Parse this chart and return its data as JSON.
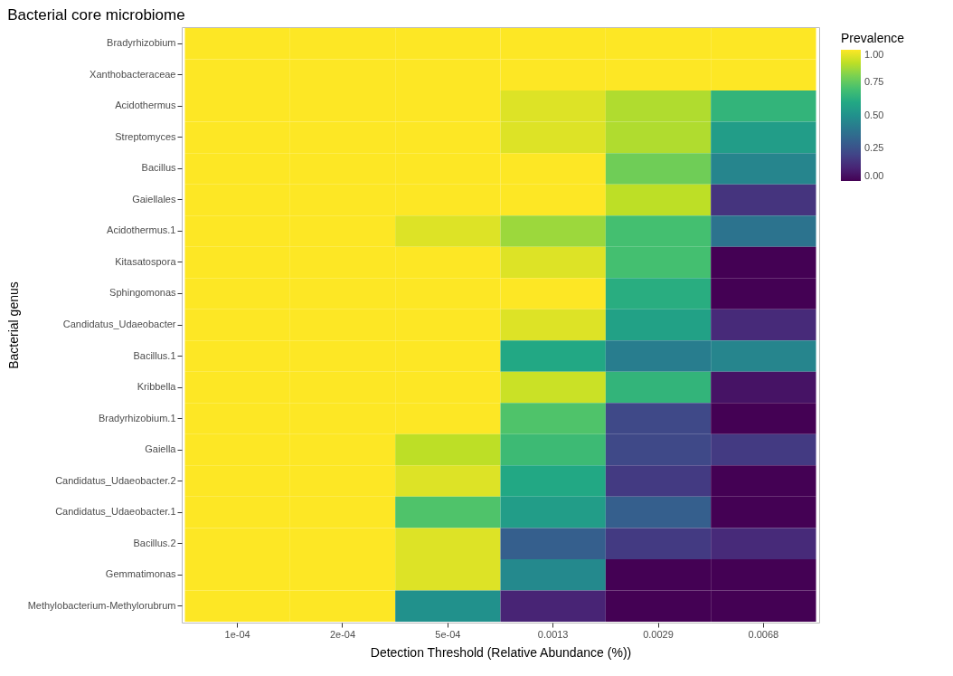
{
  "chart_data": {
    "type": "heatmap",
    "title": "Bacterial core microbiome",
    "xlabel": "Detection Threshold (Relative Abundance (%))",
    "ylabel": "Bacterial genus",
    "clabel": "Prevalence",
    "categories": [
      "1e-04",
      "2e-04",
      "5e-04",
      "0.0013",
      "0.0029",
      "0.0068"
    ],
    "y_categories": [
      "Bradyrhizobium",
      "Xanthobacteraceae",
      "Acidothermus",
      "Streptomyces",
      "Bacillus",
      "Gaiellales",
      "Acidothermus.1",
      "Kitasatospora",
      "Sphingomonas",
      "Candidatus_Udaeobacter",
      "Bacillus.1",
      "Kribbella",
      "Bradyrhizobium.1",
      "Gaiella",
      "Candidatus_Udaeobacter.2",
      "Candidatus_Udaeobacter.1",
      "Bacillus.2",
      "Gemmatimonas",
      "Methylobacterium-Methylorubrum"
    ],
    "cells": [
      [
        1,
        1,
        1,
        1,
        1,
        1
      ],
      [
        1,
        1,
        1,
        1,
        1,
        1
      ],
      [
        1,
        1,
        1,
        0.95,
        0.88,
        0.65
      ],
      [
        1,
        1,
        1,
        0.95,
        0.88,
        0.55
      ],
      [
        1,
        1,
        1,
        1,
        0.78,
        0.45
      ],
      [
        1,
        1,
        1,
        1,
        0.9,
        0.15
      ],
      [
        1,
        1,
        0.95,
        0.85,
        0.7,
        0.38
      ],
      [
        1,
        1,
        1,
        0.95,
        0.7,
        0
      ],
      [
        1,
        1,
        1,
        1,
        0.62,
        0
      ],
      [
        1,
        1,
        1,
        0.95,
        0.57,
        0.12
      ],
      [
        1,
        1,
        1,
        0.6,
        0.42,
        0.45
      ],
      [
        1,
        1,
        1,
        0.92,
        0.65,
        0.05
      ],
      [
        1,
        1,
        1,
        0.72,
        0.22,
        0
      ],
      [
        1,
        1,
        0.9,
        0.68,
        0.22,
        0.17
      ],
      [
        1,
        1,
        0.95,
        0.6,
        0.17,
        0
      ],
      [
        1,
        1,
        0.72,
        0.55,
        0.3,
        0
      ],
      [
        1,
        1,
        0.95,
        0.3,
        0.17,
        0.12
      ],
      [
        1,
        1,
        0.95,
        0.47,
        0,
        0
      ],
      [
        1,
        1,
        0.5,
        0.1,
        0,
        0
      ]
    ],
    "clim": [
      0,
      1
    ],
    "cticks": [
      {
        "value": 0,
        "label": "0.00"
      },
      {
        "value": 0.25,
        "label": "0.25"
      },
      {
        "value": 0.5,
        "label": "0.50"
      },
      {
        "value": 0.75,
        "label": "0.75"
      },
      {
        "value": 1,
        "label": "1.00"
      }
    ]
  }
}
